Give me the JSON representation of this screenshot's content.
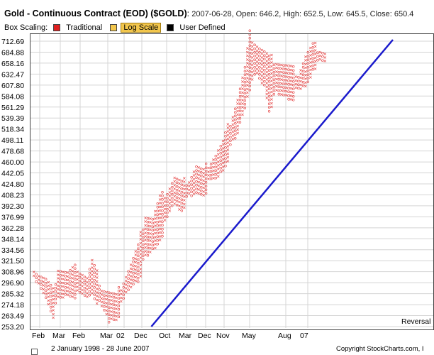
{
  "header": {
    "title": "Gold - Continuous Contract (EOD) ($GOLD)",
    "stats": "2007-06-28, Open: 646.2, High: 652.5, Low: 645.5, Close: 650.4",
    "box_scaling_label": "Box Scaling:",
    "options": [
      {
        "label": "Traditional",
        "color": "#e02020",
        "selected": false
      },
      {
        "label": "Log Scale",
        "color": "#f2c64c",
        "selected": true
      },
      {
        "label": "User Defined",
        "color": "#000000",
        "selected": false
      }
    ]
  },
  "reversal_label": "Reversal =",
  "footer": {
    "date_range": "2 January 1998 - 28 June 2007",
    "copyright": "Copyright StockCharts.com, I"
  },
  "colors": {
    "x_color": "#e02020",
    "o_color": "#e02020",
    "trendline": "#1a1acc",
    "grid": "#d4d4d4"
  },
  "chart_data": {
    "type": "point-and-figure",
    "scale": "log",
    "y_ticks": [
      253.2,
      263.49,
      274.18,
      285.32,
      296.9,
      308.96,
      321.5,
      334.56,
      348.14,
      362.28,
      376.99,
      392.3,
      408.23,
      424.8,
      442.05,
      460.0,
      478.68,
      498.11,
      518.34,
      539.39,
      561.29,
      584.08,
      607.8,
      632.47,
      658.16,
      684.88,
      712.69
    ],
    "ylim": [
      253.2,
      712.69
    ],
    "x_labels": [
      "Feb",
      "Mar",
      "Feb",
      "Mar",
      "02",
      "Dec",
      "Oct",
      "Mar",
      "Dec",
      "Nov",
      "May",
      "Aug",
      "07"
    ],
    "column_profile": [
      [
        0,
        312,
        295,
        "O"
      ],
      [
        2,
        305,
        290,
        "X"
      ],
      [
        5,
        298,
        280,
        "O"
      ],
      [
        8,
        285,
        262,
        "O"
      ],
      [
        10,
        312,
        275,
        "X"
      ],
      [
        14,
        305,
        282,
        "O"
      ],
      [
        18,
        312,
        280,
        "X"
      ],
      [
        22,
        300,
        278,
        "O"
      ],
      [
        24,
        318,
        285,
        "X"
      ],
      [
        28,
        290,
        268,
        "O"
      ],
      [
        31,
        285,
        255,
        "O"
      ],
      [
        34,
        280,
        260,
        "X"
      ],
      [
        37,
        298,
        275,
        "X"
      ],
      [
        40,
        315,
        290,
        "X"
      ],
      [
        43,
        335,
        300,
        "X"
      ],
      [
        46,
        378,
        320,
        "X"
      ],
      [
        49,
        372,
        330,
        "O"
      ],
      [
        52,
        400,
        345,
        "X"
      ],
      [
        55,
        412,
        370,
        "X"
      ],
      [
        58,
        432,
        392,
        "X"
      ],
      [
        61,
        422,
        385,
        "O"
      ],
      [
        64,
        430,
        398,
        "X"
      ],
      [
        67,
        450,
        408,
        "X"
      ],
      [
        70,
        440,
        410,
        "O"
      ],
      [
        72,
        455,
        420,
        "X"
      ],
      [
        75,
        470,
        425,
        "X"
      ],
      [
        78,
        490,
        445,
        "X"
      ],
      [
        81,
        530,
        475,
        "X"
      ],
      [
        84,
        575,
        505,
        "X"
      ],
      [
        87,
        640,
        560,
        "X"
      ],
      [
        89,
        725,
        600,
        "X"
      ],
      [
        92,
        700,
        620,
        "O"
      ],
      [
        95,
        680,
        600,
        "O"
      ],
      [
        97,
        665,
        555,
        "O"
      ],
      [
        100,
        660,
        580,
        "X"
      ],
      [
        103,
        650,
        580,
        "O"
      ],
      [
        106,
        640,
        575,
        "O"
      ],
      [
        109,
        630,
        585,
        "X"
      ],
      [
        112,
        670,
        600,
        "X"
      ],
      [
        115,
        695,
        640,
        "X"
      ],
      [
        118,
        690,
        655,
        "O"
      ],
      [
        120,
        680,
        655,
        "X"
      ]
    ],
    "trendline": [
      [
        0.3,
        253.2
      ],
      [
        1.0,
        712.69
      ]
    ]
  }
}
